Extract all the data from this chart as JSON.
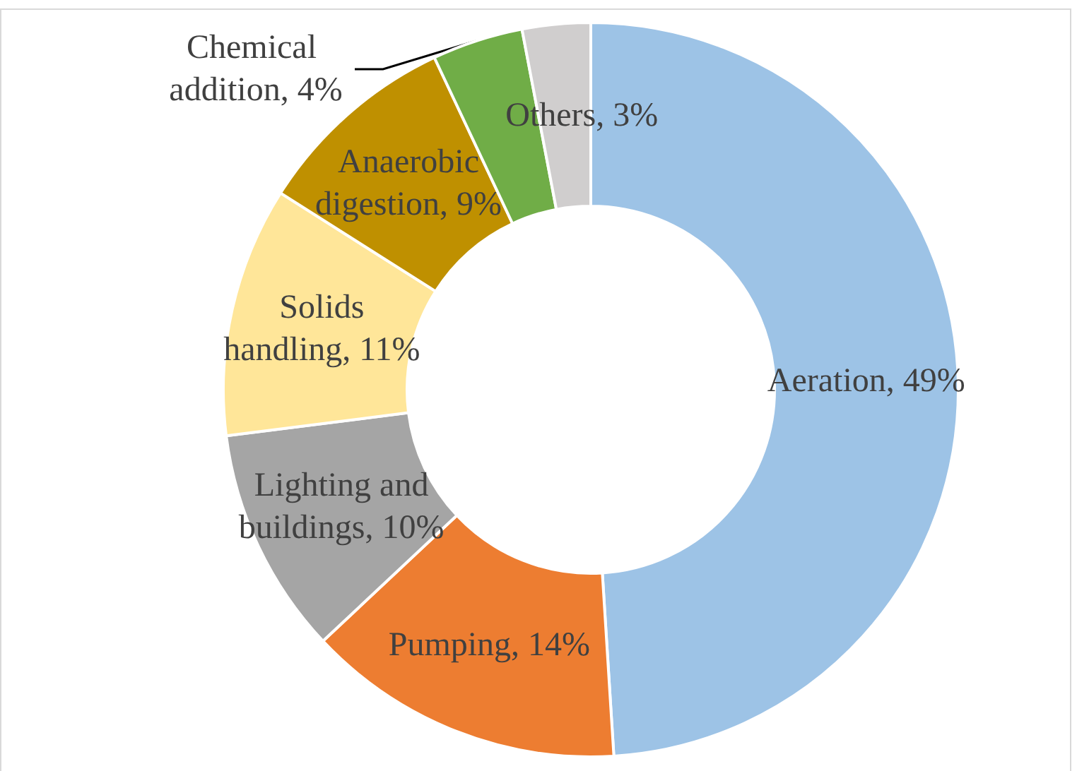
{
  "chart_data": {
    "type": "donut",
    "categories": [
      "Aeration",
      "Pumping",
      "Lighting and buildings",
      "Solids handling",
      "Anaerobic digestion",
      "Chemical addition",
      "Others"
    ],
    "values": [
      49,
      14,
      10,
      11,
      9,
      4,
      3
    ],
    "value_labels": [
      "49%",
      "14%",
      "10%",
      "11%",
      "9%",
      "4%",
      "3%"
    ],
    "colors": [
      "#9dc3e6",
      "#ed7d31",
      "#a5a5a5",
      "#ffe699",
      "#bf9000",
      "#70ad47",
      "#d0cece"
    ]
  }
}
